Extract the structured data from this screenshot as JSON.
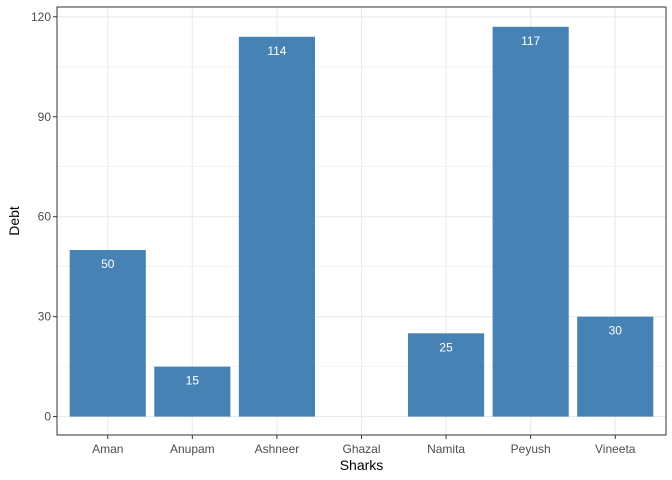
{
  "chart_data": {
    "type": "bar",
    "categories": [
      "Aman",
      "Anupam",
      "Ashneer",
      "Ghazal",
      "Namita",
      "Peyush",
      "Vineeta"
    ],
    "values": [
      50,
      15,
      114,
      0,
      25,
      117,
      30
    ],
    "data_labels": [
      "50",
      "15",
      "114",
      "",
      "25",
      "117",
      "30"
    ],
    "xlabel": "Sharks",
    "ylabel": "Debt",
    "ylim": [
      0,
      120
    ],
    "yticks": [
      0,
      30,
      60,
      90,
      120
    ],
    "grid": true,
    "bar_color": "#4682B4",
    "grid_color": "#EBEBEB",
    "panel_border_color": "#333333"
  }
}
